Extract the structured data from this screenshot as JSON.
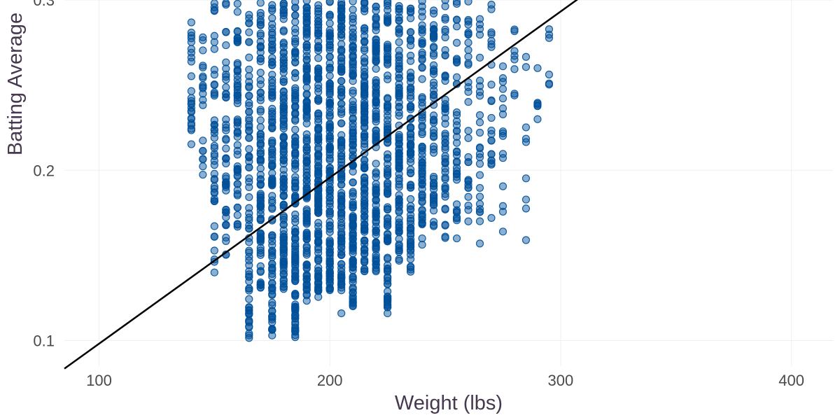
{
  "chart_data": {
    "type": "scatter",
    "title": "",
    "xlabel": "Weight (lbs)",
    "ylabel": "Batting Average",
    "xlim": [
      85,
      418
    ],
    "ylim": [
      0.085,
      0.3
    ],
    "x_ticks": [
      100,
      200,
      300,
      400
    ],
    "y_ticks": [
      0.1,
      0.2,
      0.3
    ],
    "x_tick_labels": [
      "100",
      "200",
      "300",
      "400"
    ],
    "y_tick_labels": [
      "0.1",
      "0.2",
      "0.3"
    ],
    "grid": true,
    "point_color": "#00509a",
    "line_color": "#000000",
    "trend_line": {
      "x": [
        85,
        310
      ],
      "y": [
        0.0835,
        0.303
      ]
    },
    "series": [
      {
        "columns": [
          {
            "x": 140,
            "y_min": 0.215,
            "y_max": 0.3,
            "n": 25
          },
          {
            "x": 145,
            "y_min": 0.195,
            "y_max": 0.3,
            "n": 20
          },
          {
            "x": 150,
            "y_min": 0.14,
            "y_max": 0.3,
            "n": 45
          },
          {
            "x": 155,
            "y_min": 0.15,
            "y_max": 0.3,
            "n": 50
          },
          {
            "x": 160,
            "y_min": 0.165,
            "y_max": 0.3,
            "n": 60
          },
          {
            "x": 165,
            "y_min": 0.1,
            "y_max": 0.3,
            "n": 75
          },
          {
            "x": 170,
            "y_min": 0.13,
            "y_max": 0.3,
            "n": 90
          },
          {
            "x": 175,
            "y_min": 0.1,
            "y_max": 0.3,
            "n": 110
          },
          {
            "x": 180,
            "y_min": 0.13,
            "y_max": 0.3,
            "n": 120
          },
          {
            "x": 185,
            "y_min": 0.1,
            "y_max": 0.3,
            "n": 130
          },
          {
            "x": 190,
            "y_min": 0.12,
            "y_max": 0.3,
            "n": 140
          },
          {
            "x": 195,
            "y_min": 0.125,
            "y_max": 0.3,
            "n": 140
          },
          {
            "x": 200,
            "y_min": 0.125,
            "y_max": 0.3,
            "n": 140
          },
          {
            "x": 205,
            "y_min": 0.125,
            "y_max": 0.3,
            "n": 130
          },
          {
            "x": 210,
            "y_min": 0.12,
            "y_max": 0.3,
            "n": 130
          },
          {
            "x": 215,
            "y_min": 0.14,
            "y_max": 0.3,
            "n": 120
          },
          {
            "x": 220,
            "y_min": 0.14,
            "y_max": 0.3,
            "n": 115
          },
          {
            "x": 225,
            "y_min": 0.115,
            "y_max": 0.3,
            "n": 105
          },
          {
            "x": 230,
            "y_min": 0.145,
            "y_max": 0.3,
            "n": 95
          },
          {
            "x": 235,
            "y_min": 0.14,
            "y_max": 0.3,
            "n": 85
          },
          {
            "x": 240,
            "y_min": 0.155,
            "y_max": 0.3,
            "n": 70
          },
          {
            "x": 245,
            "y_min": 0.165,
            "y_max": 0.3,
            "n": 60
          },
          {
            "x": 250,
            "y_min": 0.16,
            "y_max": 0.3,
            "n": 50
          },
          {
            "x": 255,
            "y_min": 0.17,
            "y_max": 0.3,
            "n": 40
          },
          {
            "x": 260,
            "y_min": 0.175,
            "y_max": 0.3,
            "n": 30
          },
          {
            "x": 265,
            "y_min": 0.17,
            "y_max": 0.3,
            "n": 25
          },
          {
            "x": 270,
            "y_min": 0.2,
            "y_max": 0.3,
            "n": 22
          },
          {
            "x": 275,
            "y_min": 0.165,
            "y_max": 0.3,
            "n": 15
          },
          {
            "x": 280,
            "y_min": 0.24,
            "y_max": 0.285,
            "n": 6
          },
          {
            "x": 285,
            "y_min": 0.16,
            "y_max": 0.28,
            "n": 8
          },
          {
            "x": 290,
            "y_min": 0.23,
            "y_max": 0.275,
            "n": 4
          },
          {
            "x": 295,
            "y_min": 0.25,
            "y_max": 0.285,
            "n": 5
          }
        ],
        "points": [
          {
            "x": 165,
            "y": 0.103
          },
          {
            "x": 175,
            "y": 0.103
          },
          {
            "x": 185,
            "y": 0.102
          },
          {
            "x": 225,
            "y": 0.116
          },
          {
            "x": 205,
            "y": 0.116
          },
          {
            "x": 150,
            "y": 0.14
          },
          {
            "x": 255,
            "y": 0.16
          },
          {
            "x": 265,
            "y": 0.157
          },
          {
            "x": 285,
            "y": 0.159
          },
          {
            "x": 275,
            "y": 0.164
          },
          {
            "x": 260,
            "y": 0.17
          },
          {
            "x": 270,
            "y": 0.172
          },
          {
            "x": 280,
            "y": 0.27
          },
          {
            "x": 290,
            "y": 0.26
          },
          {
            "x": 295,
            "y": 0.251
          },
          {
            "x": 290,
            "y": 0.23
          },
          {
            "x": 280,
            "y": 0.245
          }
        ]
      }
    ]
  }
}
